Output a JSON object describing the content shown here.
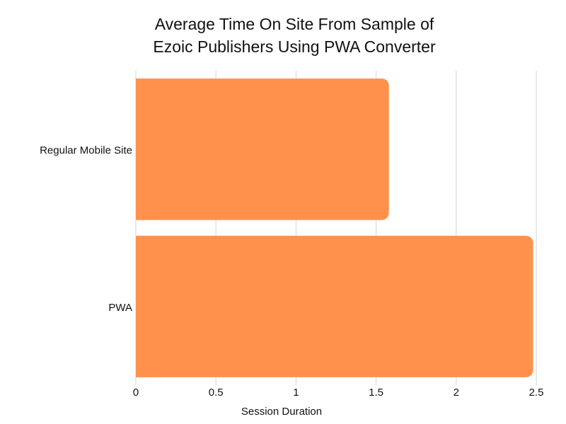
{
  "chart_data": {
    "type": "bar",
    "orientation": "horizontal",
    "title": [
      "Average Time On Site From Sample of",
      "Ezoic Publishers Using PWA Converter"
    ],
    "xlabel": "Session Duration",
    "ylabel": "",
    "categories": [
      "Regular Mobile Site",
      "PWA"
    ],
    "values": [
      1.58,
      2.48
    ],
    "xlim": [
      0,
      2.5
    ],
    "xticks": [
      0,
      0.5,
      1,
      1.5,
      2,
      2.5
    ],
    "xtick_labels": [
      "0",
      "0.5",
      "1",
      "1.5",
      "2",
      "2.5"
    ],
    "grid": true,
    "legend": "none",
    "bar_color": "#ff914d",
    "grid_color": "#d6d6d6"
  }
}
